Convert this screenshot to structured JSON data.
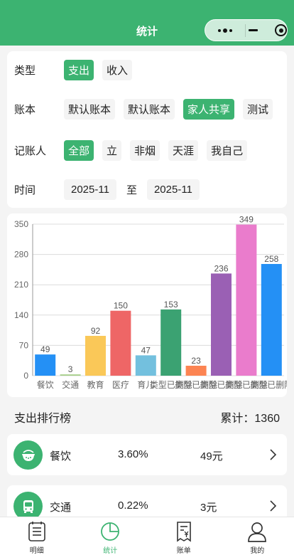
{
  "nav": {
    "title": "统计"
  },
  "filters": {
    "type": {
      "label": "类型",
      "options": [
        "支出",
        "收入"
      ],
      "active": 0
    },
    "account": {
      "label": "账本",
      "options": [
        "默认账本",
        "默认账本",
        "家人共享",
        "测试"
      ],
      "active": 2
    },
    "recorder": {
      "label": "记账人",
      "options": [
        "全部",
        "立",
        "非烟",
        "天涯",
        "我自己"
      ],
      "active": 0
    },
    "time": {
      "label": "时间",
      "start": "2025-11",
      "separator": "至",
      "end": "2025-11"
    }
  },
  "chart_data": {
    "type": "bar",
    "categories": [
      "餐饮",
      "交通",
      "教育",
      "医疗",
      "育儿",
      "类型已删除",
      "类型已删除",
      "类型已删除",
      "类型已删除",
      "类型已删除"
    ],
    "values": [
      49,
      3,
      92,
      150,
      47,
      153,
      23,
      236,
      349,
      258
    ],
    "colors": [
      "#2490f5",
      "#a6cf8a",
      "#fac858",
      "#ee6666",
      "#73c0de",
      "#3ba272",
      "#fc8452",
      "#9a60b4",
      "#ea7ccc",
      "#2490f5"
    ],
    "yticks": [
      0,
      70,
      140,
      210,
      280,
      350
    ],
    "ylim": [
      0,
      350
    ],
    "grid": true
  },
  "ranking": {
    "title": "支出排行榜",
    "total_label": "累计：",
    "total": "1360",
    "items": [
      {
        "icon": "bowl-icon",
        "name": "餐饮",
        "percent": "3.60%",
        "amount": "49元"
      },
      {
        "icon": "bus-icon",
        "name": "交通",
        "percent": "0.22%",
        "amount": "3元"
      }
    ]
  },
  "tabs": [
    {
      "icon": "list-icon",
      "label": "明细"
    },
    {
      "icon": "pie-chart-icon",
      "label": "统计",
      "active": true
    },
    {
      "icon": "bill-icon",
      "label": "账单"
    },
    {
      "icon": "user-icon",
      "label": "我的"
    }
  ],
  "colors": {
    "accent": "#3cb371"
  }
}
